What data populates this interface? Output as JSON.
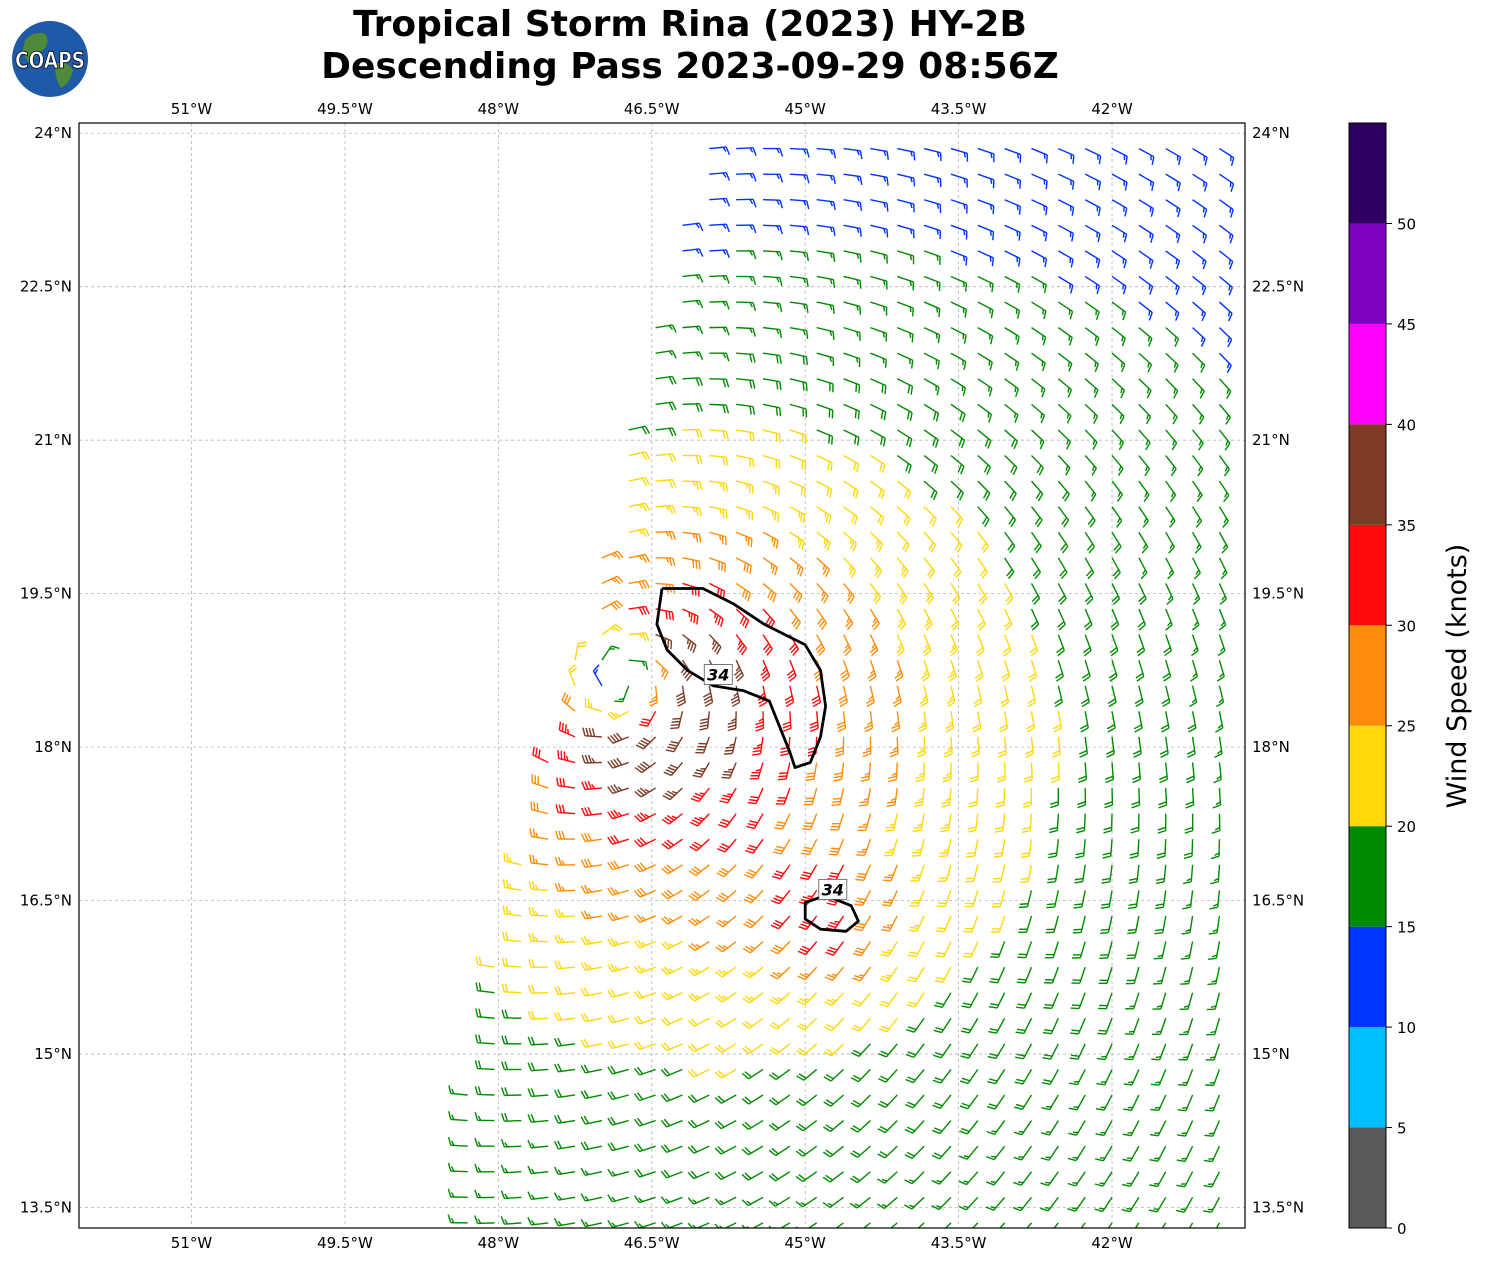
{
  "title": {
    "line1": "Tropical Storm Rina (2023) HY-2B",
    "line2": "Descending Pass 2023-09-29 08:56Z"
  },
  "logo": {
    "text": "COAPS",
    "icon": "coaps-globe-logo"
  },
  "map": {
    "lon_range": [
      -52.1,
      -40.7
    ],
    "lat_range": [
      13.3,
      24.1
    ],
    "lon_ticks": [
      "51°W",
      "49.5°W",
      "48°W",
      "46.5°W",
      "45°W",
      "43.5°W",
      "42°W"
    ],
    "lon_tick_values": [
      -51,
      -49.5,
      -48,
      -46.5,
      -45,
      -43.5,
      -42
    ],
    "lat_ticks": [
      "24°N",
      "22.5°N",
      "21°N",
      "19.5°N",
      "18°N",
      "16.5°N",
      "15°N",
      "13.5°N"
    ],
    "lat_tick_values": [
      24,
      22.5,
      21,
      19.5,
      18,
      16.5,
      15,
      13.5
    ],
    "gridlines": true,
    "content": "wind barbs (knots) around a cyclonic circulation centred near 18.7°N 46.8°W",
    "storm_center": {
      "lon": -46.8,
      "lat": 18.65
    },
    "contour_level": 34,
    "contour_labels": [
      "34",
      "34"
    ],
    "contours": [
      {
        "label": "34",
        "label_pos": {
          "lon": -45.85,
          "lat": 18.7
        },
        "points": [
          [
            -46.4,
            19.55
          ],
          [
            -46.0,
            19.55
          ],
          [
            -45.7,
            19.4
          ],
          [
            -45.4,
            19.2
          ],
          [
            -45.0,
            19.0
          ],
          [
            -44.85,
            18.75
          ],
          [
            -44.8,
            18.4
          ],
          [
            -44.85,
            18.1
          ],
          [
            -44.95,
            17.85
          ],
          [
            -45.1,
            17.8
          ],
          [
            -45.15,
            17.95
          ],
          [
            -45.25,
            18.2
          ],
          [
            -45.35,
            18.45
          ],
          [
            -45.6,
            18.55
          ],
          [
            -45.9,
            18.6
          ],
          [
            -46.15,
            18.75
          ],
          [
            -46.35,
            18.95
          ],
          [
            -46.45,
            19.2
          ],
          [
            -46.4,
            19.55
          ]
        ]
      },
      {
        "label": "34",
        "label_pos": {
          "lon": -44.73,
          "lat": 16.6
        },
        "points": [
          [
            -44.8,
            16.55
          ],
          [
            -44.55,
            16.45
          ],
          [
            -44.48,
            16.3
          ],
          [
            -44.6,
            16.2
          ],
          [
            -44.85,
            16.22
          ],
          [
            -45.0,
            16.32
          ],
          [
            -45.0,
            16.48
          ],
          [
            -44.8,
            16.55
          ]
        ]
      }
    ]
  },
  "colorbar": {
    "label": "Wind Speed (knots)",
    "ticks": [
      "0",
      "5",
      "10",
      "15",
      "20",
      "25",
      "30",
      "35",
      "40",
      "45",
      "50"
    ],
    "max": 55,
    "bins": [
      {
        "from": 0,
        "to": 5,
        "color": "#595959"
      },
      {
        "from": 5,
        "to": 10,
        "color": "#00bfff"
      },
      {
        "from": 10,
        "to": 15,
        "color": "#0033ff"
      },
      {
        "from": 15,
        "to": 20,
        "color": "#008c00"
      },
      {
        "from": 20,
        "to": 25,
        "color": "#ffd70a"
      },
      {
        "from": 25,
        "to": 30,
        "color": "#ff8c0a"
      },
      {
        "from": 30,
        "to": 35,
        "color": "#ff0a0a"
      },
      {
        "from": 35,
        "to": 40,
        "color": "#7f3a26"
      },
      {
        "from": 40,
        "to": 45,
        "color": "#ff00ff"
      },
      {
        "from": 45,
        "to": 50,
        "color": "#8000bf"
      },
      {
        "from": 50,
        "to": 55,
        "color": "#2d0060"
      }
    ]
  }
}
